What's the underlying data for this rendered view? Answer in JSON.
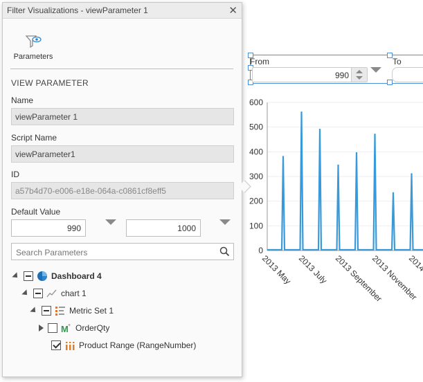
{
  "panel": {
    "title": "Filter Visualizations - viewParameter 1",
    "tab_label": "Parameters",
    "section_title": "VIEW PARAMETER",
    "name_label": "Name",
    "name_value": "viewParameter 1",
    "script_name_label": "Script Name",
    "script_name_value": "viewParameter1",
    "id_label": "ID",
    "id_value": "a57b4d70-e006-e18e-064a-c0861cf8eff5",
    "default_value_label": "Default Value",
    "default_from": "990",
    "default_to": "1000",
    "search_placeholder": "Search Parameters"
  },
  "tree": {
    "dashboard": "Dashboard 4",
    "chart": "chart 1",
    "metric_set": "Metric Set 1",
    "order_qty": "OrderQty",
    "product_range": "Product Range (RangeNumber)"
  },
  "range_filter": {
    "from_label": "From",
    "to_label": "To",
    "from_value": "990"
  },
  "colors": {
    "accent": "#4b8fd6",
    "line": "#3a9ad9"
  },
  "chart_data": {
    "type": "line",
    "yticks": [
      0,
      100,
      200,
      300,
      400,
      500,
      600
    ],
    "ylim": [
      0,
      600
    ],
    "xlabels": [
      "2013 May",
      "2013 July",
      "2013 September",
      "2013 November",
      "2014"
    ],
    "spikes": [
      {
        "month": "2013 May",
        "value": 380
      },
      {
        "month": "2013 June",
        "value": 560
      },
      {
        "month": "2013 July",
        "value": 490
      },
      {
        "month": "2013 August",
        "value": 345
      },
      {
        "month": "2013 September",
        "value": 395
      },
      {
        "month": "2013 October",
        "value": 470
      },
      {
        "month": "2013 November",
        "value": 233
      },
      {
        "month": "2013 December",
        "value": 310
      }
    ]
  }
}
